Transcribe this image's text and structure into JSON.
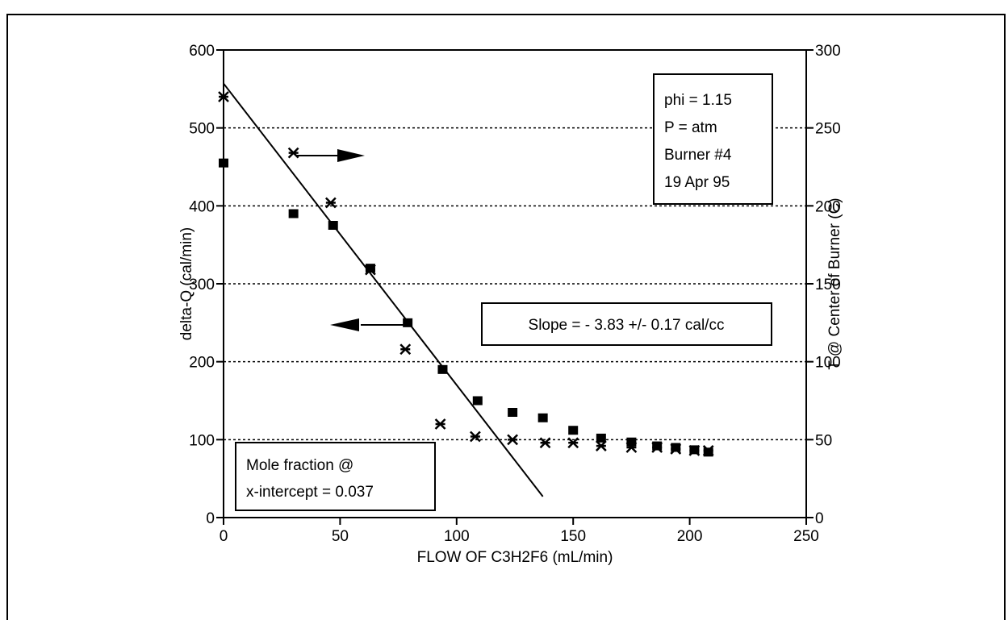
{
  "chart_data": {
    "type": "scatter",
    "xlabel": "FLOW OF C3H2F6 (mL/min)",
    "ylabel": "delta-Q (cal/min)",
    "y2label": "T @ Center of Burner (C)",
    "xlim": [
      0,
      250
    ],
    "ylim": [
      0,
      600
    ],
    "y2lim": [
      0,
      300
    ],
    "xticks": [
      "0",
      "50",
      "100",
      "150",
      "200",
      "250"
    ],
    "yticks": [
      "0",
      "100",
      "200",
      "300",
      "400",
      "500",
      "600"
    ],
    "y2ticks": [
      "0",
      "50",
      "100",
      "150",
      "200",
      "250",
      "300"
    ],
    "grid": "horizontal-dashed",
    "series": [
      {
        "marker": "square",
        "axis": "left",
        "x": [
          0,
          30,
          47,
          63,
          79,
          94,
          109,
          124,
          137,
          150,
          162,
          175,
          186,
          194,
          202,
          208
        ],
        "y": [
          455,
          390,
          375,
          320,
          250,
          190,
          150,
          135,
          128,
          112,
          102,
          97,
          92,
          90,
          87,
          84
        ]
      },
      {
        "marker": "asterisk",
        "axis": "right",
        "x": [
          0,
          30,
          46,
          63,
          78,
          93,
          108,
          124,
          138,
          150,
          162,
          175,
          186,
          194,
          202,
          208
        ],
        "y": [
          270,
          234,
          202,
          159,
          108,
          60,
          52,
          50,
          48,
          48,
          46,
          45,
          45,
          44,
          43,
          43
        ]
      }
    ],
    "fit_line": {
      "x": [
        0,
        137
      ],
      "y": [
        557,
        27
      ]
    },
    "annotations": {
      "conditions": [
        "phi = 1.15",
        "P = atm",
        "Burner #4",
        "19 Apr 95"
      ],
      "slope": "Slope = - 3.83 +/- 0.17 cal/cc",
      "mole_fraction": [
        "Mole fraction @",
        "x-intercept = 0.037"
      ]
    }
  }
}
